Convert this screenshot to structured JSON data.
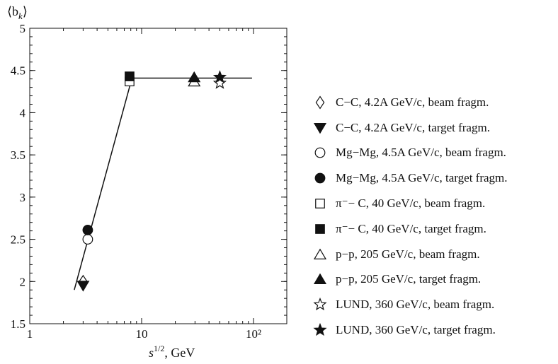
{
  "chart_data": {
    "type": "scatter",
    "title": "",
    "ylabel": "⟨b_k⟩",
    "xlabel": "s^{1/2}, GeV",
    "xscale": "log",
    "xlim": [
      1,
      200
    ],
    "ylim": [
      1.5,
      5
    ],
    "x_ticks": [
      {
        "value": 1,
        "label": "1"
      },
      {
        "value": 10,
        "label": "10"
      },
      {
        "value": 100,
        "label": "10²"
      }
    ],
    "y_ticks": [
      {
        "value": 1.5,
        "label": "1.5"
      },
      {
        "value": 2,
        "label": "2"
      },
      {
        "value": 2.5,
        "label": "2.5"
      },
      {
        "value": 3,
        "label": "3"
      },
      {
        "value": 3.5,
        "label": "3.5"
      },
      {
        "value": 4,
        "label": "4"
      },
      {
        "value": 4.5,
        "label": "4.5"
      },
      {
        "value": 5,
        "label": "5"
      }
    ],
    "series": [
      {
        "name": "C−C, 4.2A GeV/c, beam fragm.",
        "marker": "diamond-open",
        "points": [
          {
            "x": 3.0,
            "y": 2.0
          }
        ]
      },
      {
        "name": "C−C, 4.2A GeV/c, target fragm.",
        "marker": "triangle-down-filled",
        "points": [
          {
            "x": 3.0,
            "y": 1.95
          }
        ]
      },
      {
        "name": "Mg−Mg, 4.5A GeV/c, beam fragm.",
        "marker": "circle-open",
        "points": [
          {
            "x": 3.3,
            "y": 2.5
          }
        ]
      },
      {
        "name": "Mg−Mg, 4.5A GeV/c, target fragm.",
        "marker": "circle-filled",
        "points": [
          {
            "x": 3.3,
            "y": 2.61
          }
        ]
      },
      {
        "name": "π⁻− C, 40 GeV/c, beam fragm.",
        "marker": "square-open",
        "points": [
          {
            "x": 7.8,
            "y": 4.37
          }
        ]
      },
      {
        "name": "π⁻− C, 40 GeV/c, target fragm.",
        "marker": "square-filled",
        "points": [
          {
            "x": 7.8,
            "y": 4.43
          }
        ]
      },
      {
        "name": "p−p, 205 GeV/c, beam fragm.",
        "marker": "triangle-up-open",
        "points": [
          {
            "x": 29.5,
            "y": 4.37
          }
        ]
      },
      {
        "name": "p−p, 205 GeV/c, target fragm.",
        "marker": "triangle-up-filled",
        "points": [
          {
            "x": 29.5,
            "y": 4.42
          }
        ]
      },
      {
        "name": "LUND, 360 GeV/c, beam fragm.",
        "marker": "star-open",
        "points": [
          {
            "x": 50,
            "y": 4.35
          }
        ]
      },
      {
        "name": "LUND, 360 GeV/c, target fragm.",
        "marker": "star-filled",
        "points": [
          {
            "x": 50,
            "y": 4.42
          }
        ]
      }
    ],
    "fit_lines": [
      {
        "points": [
          {
            "x": 2.5,
            "y": 1.9
          },
          {
            "x": 8.2,
            "y": 4.41
          }
        ]
      },
      {
        "points": [
          {
            "x": 8.2,
            "y": 4.41
          },
          {
            "x": 97,
            "y": 4.41
          }
        ]
      }
    ],
    "legend_position": "right"
  }
}
